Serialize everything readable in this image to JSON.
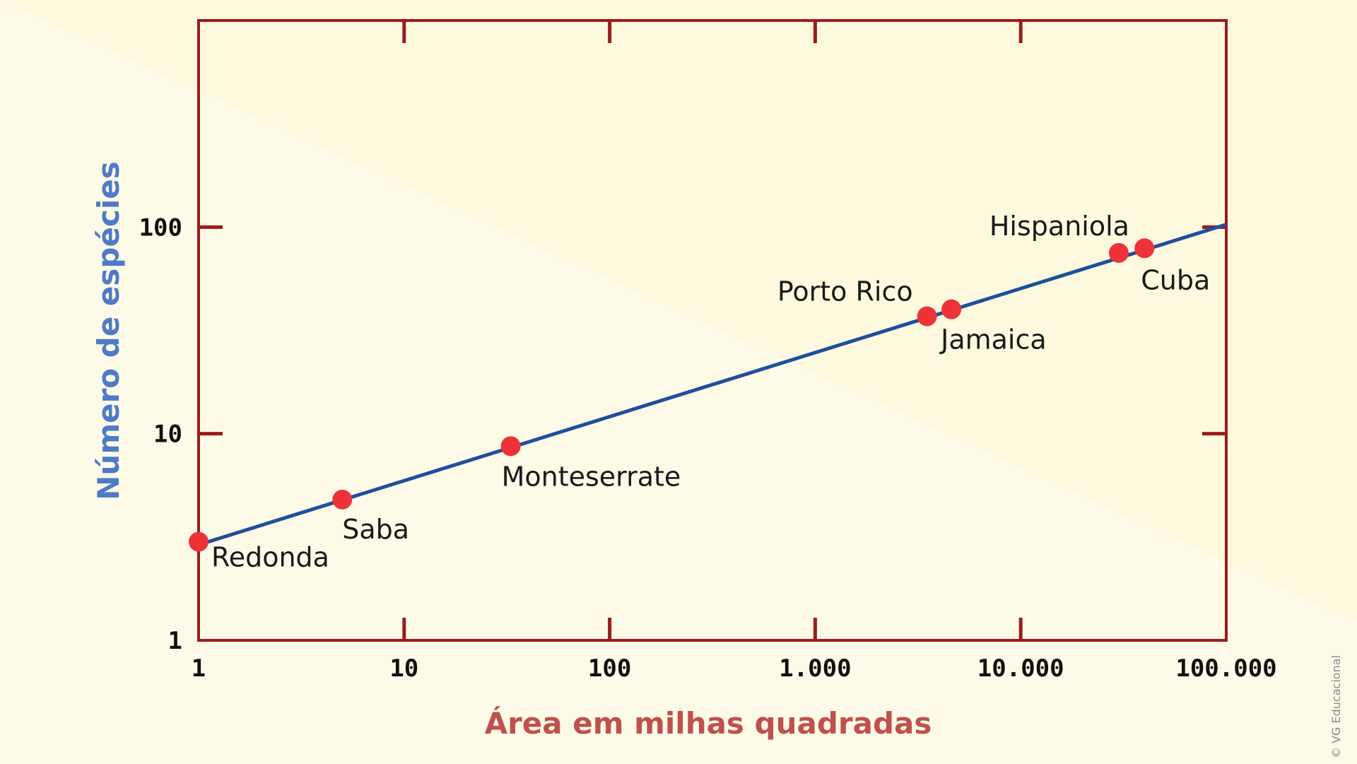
{
  "chart_data": {
    "type": "scatter",
    "xlabel": "Área em milhas quadradas",
    "ylabel": "Número de espécies",
    "xscale": "log",
    "yscale": "log",
    "xlim": [
      1,
      100000
    ],
    "ylim": [
      1,
      1000
    ],
    "xticks": [
      1,
      10,
      100,
      1000,
      10000,
      100000
    ],
    "xtick_labels": [
      "1",
      "10",
      "100",
      "1.000",
      "10.000",
      "100.000"
    ],
    "yticks": [
      1,
      10,
      100
    ],
    "ytick_labels": [
      "1",
      "10",
      "100"
    ],
    "points": [
      {
        "label": "Redonda",
        "x": 1,
        "y": 3
      },
      {
        "label": "Saba",
        "x": 5,
        "y": 4.8
      },
      {
        "label": "Monteserrate",
        "x": 33,
        "y": 8.7
      },
      {
        "label": "Porto Rico",
        "x": 3500,
        "y": 37
      },
      {
        "label": "Jamaica",
        "x": 4600,
        "y": 40
      },
      {
        "label": "Hispaniola",
        "x": 30000,
        "y": 75
      },
      {
        "label": "Cuba",
        "x": 40000,
        "y": 79
      }
    ],
    "fit_line": {
      "x": [
        1,
        100000
      ],
      "y": [
        2.9,
        103
      ]
    },
    "grid": false,
    "colors": {
      "axes": "#9b1c1c",
      "line": "#1f4e9c",
      "points": "#ee3338",
      "xlabel": "#c0504d",
      "ylabel": "#4f7ac7"
    }
  },
  "copyright": "© VG Educacional"
}
